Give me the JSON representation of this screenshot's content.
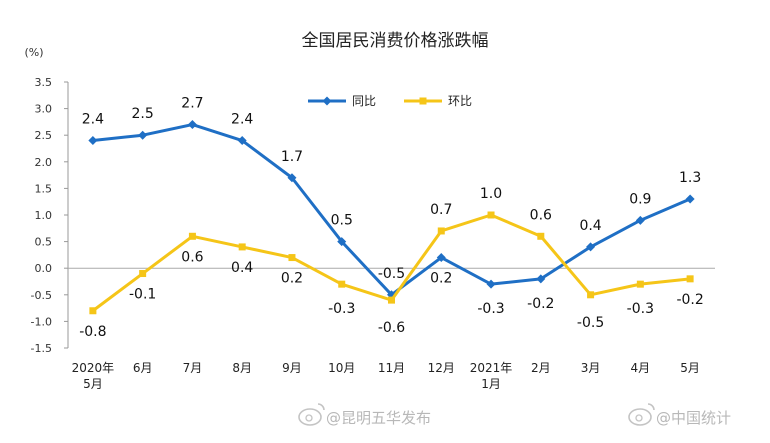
{
  "chart_data": {
    "type": "line",
    "title": "全国居民消费价格涨跌幅",
    "unit_label": "(%)",
    "categories": [
      [
        "2020年",
        "5月"
      ],
      [
        "6月"
      ],
      [
        "7月"
      ],
      [
        "8月"
      ],
      [
        "9月"
      ],
      [
        "10月"
      ],
      [
        "11月"
      ],
      [
        "12月"
      ],
      [
        "2021年",
        "1月"
      ],
      [
        "2月"
      ],
      [
        "3月"
      ],
      [
        "4月"
      ],
      [
        "5月"
      ]
    ],
    "yticks": [
      "3.5",
      "3.0",
      "2.5",
      "2.0",
      "1.5",
      "1.0",
      "0.5",
      "0.0",
      "-0.5",
      "-1.0",
      "-1.5"
    ],
    "ylim": [
      -1.5,
      3.5
    ],
    "series": [
      {
        "name": "同比",
        "color": "#1f6fc5",
        "marker": "diamond",
        "values": [
          2.4,
          2.5,
          2.7,
          2.4,
          1.7,
          0.5,
          -0.5,
          0.2,
          -0.3,
          -0.2,
          0.4,
          0.9,
          1.3
        ],
        "labels": [
          "2.4",
          "2.5",
          "2.7",
          "2.4",
          "1.7",
          "0.5",
          "-0.5",
          "0.2",
          "-0.3",
          "-0.2",
          "0.4",
          "0.9",
          "1.3"
        ]
      },
      {
        "name": "环比",
        "color": "#f5c518",
        "marker": "square",
        "values": [
          -0.8,
          -0.1,
          0.6,
          0.4,
          0.2,
          -0.3,
          -0.6,
          0.7,
          1.0,
          0.6,
          -0.5,
          -0.3,
          -0.2
        ],
        "labels": [
          "-0.8",
          "-0.1",
          "0.6",
          "0.4",
          "0.2",
          "-0.3",
          "-0.6",
          "0.7",
          "1.0",
          "0.6",
          "-0.5",
          "-0.3",
          "-0.2"
        ]
      }
    ],
    "legend_position": "top-center",
    "grid": false
  },
  "watermarks": [
    "@昆明五华发布",
    "@中国统计"
  ]
}
